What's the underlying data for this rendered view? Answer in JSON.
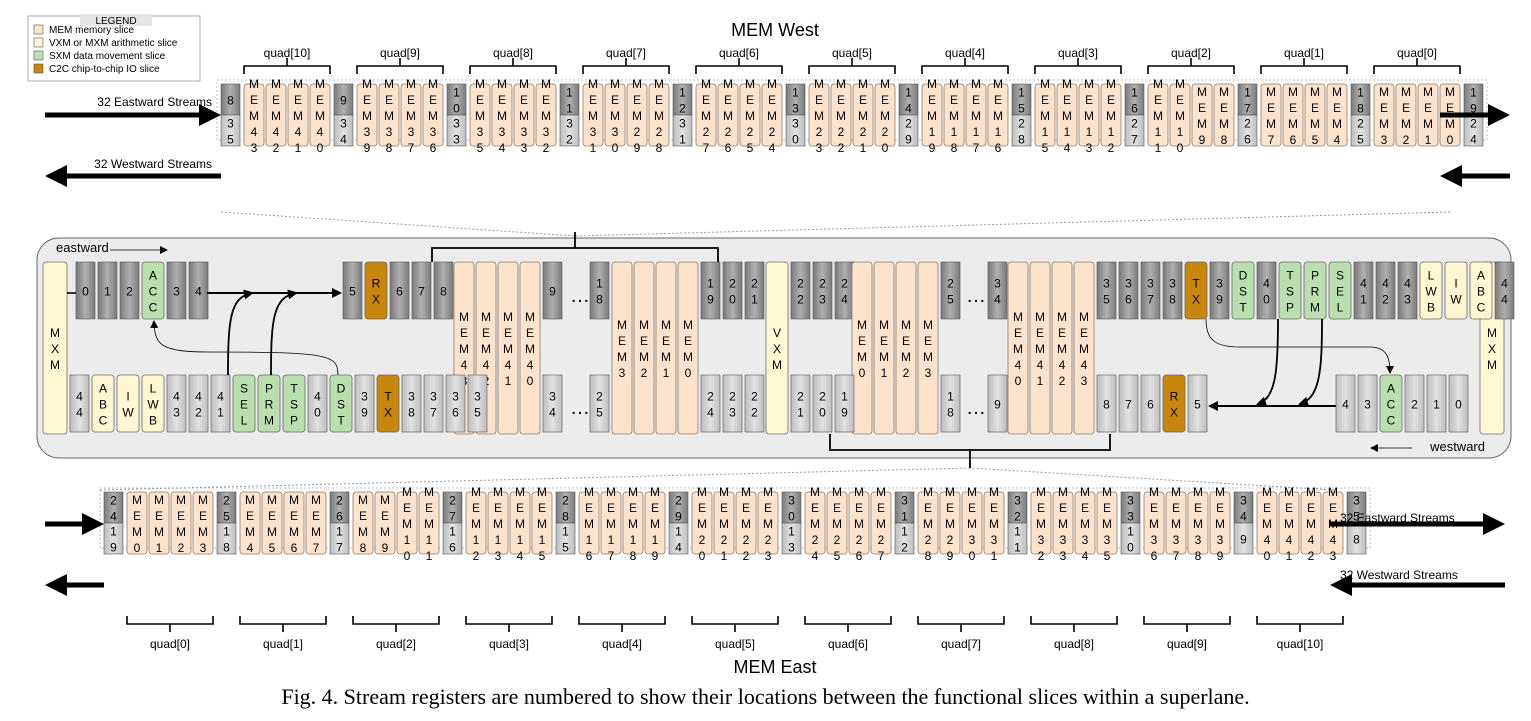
{
  "legend": {
    "title": "LEGEND",
    "items": [
      {
        "label": "MEM memory slice",
        "color": "#fde3cc"
      },
      {
        "label": "VXM or MXM arithmetic slice",
        "color": "#fff6d2"
      },
      {
        "label": "SXM data movement slice",
        "color": "#b9dfae"
      },
      {
        "label": "C2C chip-to-chip IO slice",
        "color": "#c8860d"
      }
    ]
  },
  "colors": {
    "mem": "#fde3cc",
    "arith": "#fff6d2",
    "sxm": "#b9dfae",
    "c2c": "#c8860d",
    "reg_dark": "#9a9a9a",
    "reg_light": "#cfcfcf"
  },
  "top": {
    "title": "MEM West",
    "eastward_label": "32 Eastward Streams",
    "westward_label": "32 Westward Streams",
    "quads": [
      "quad[10]",
      "quad[9]",
      "quad[8]",
      "quad[7]",
      "quad[6]",
      "quad[5]",
      "quad[4]",
      "quad[3]",
      "quad[2]",
      "quad[1]",
      "quad[0]"
    ],
    "regs_top": [
      "8",
      "9",
      "10",
      "11",
      "12",
      "13",
      "14",
      "15",
      "16",
      "17",
      "18",
      "19"
    ],
    "regs_bottom": [
      "35",
      "34",
      "33",
      "32",
      "31",
      "30",
      "29",
      "28",
      "27",
      "26",
      "25",
      "24"
    ],
    "mems": [
      [
        "MEM43",
        "MEM42",
        "MEM41",
        "MEM40"
      ],
      [
        "MEM39",
        "MEM38",
        "MEM37",
        "MEM36"
      ],
      [
        "MEM35",
        "MEM34",
        "MEM33",
        "MEM32"
      ],
      [
        "MEM31",
        "MEM30",
        "MEM29",
        "MEM28"
      ],
      [
        "MEM27",
        "MEM26",
        "MEM25",
        "MEM24"
      ],
      [
        "MEM23",
        "MEM22",
        "MEM21",
        "MEM20"
      ],
      [
        "MEM19",
        "MEM18",
        "MEM17",
        "MEM16"
      ],
      [
        "MEM15",
        "MEM14",
        "MEM13",
        "MEM12"
      ],
      [
        "MEM11",
        "MEM10",
        "MEM9",
        "MEM8"
      ],
      [
        "MEM7",
        "MEM6",
        "MEM5",
        "MEM4"
      ],
      [
        "MEM3",
        "MEM2",
        "MEM1",
        "MEM0"
      ]
    ]
  },
  "bottom": {
    "title": "MEM East",
    "eastward_label": "32 Eastward Streams",
    "westward_label": "32 Westward Streams",
    "quads": [
      "quad[0]",
      "quad[1]",
      "quad[2]",
      "quad[3]",
      "quad[4]",
      "quad[5]",
      "quad[6]",
      "quad[7]",
      "quad[8]",
      "quad[9]",
      "quad[10]"
    ],
    "regs_top": [
      "24",
      "25",
      "26",
      "27",
      "28",
      "29",
      "30",
      "31",
      "32",
      "33",
      "34",
      "35"
    ],
    "regs_bottom": [
      "19",
      "18",
      "17",
      "16",
      "15",
      "14",
      "13",
      "12",
      "11",
      "10",
      "9",
      "8"
    ],
    "mems": [
      [
        "MEM0",
        "MEM1",
        "MEM2",
        "MEM3"
      ],
      [
        "MEM4",
        "MEM5",
        "MEM6",
        "MEM7"
      ],
      [
        "MEM8",
        "MEM9",
        "MEM10",
        "MEM11"
      ],
      [
        "MEM12",
        "MEM13",
        "MEM14",
        "MEM15"
      ],
      [
        "MEM16",
        "MEM17",
        "MEM18",
        "MEM19"
      ],
      [
        "MEM20",
        "MEM21",
        "MEM22",
        "MEM23"
      ],
      [
        "MEM24",
        "MEM25",
        "MEM26",
        "MEM27"
      ],
      [
        "MEM28",
        "MEM29",
        "MEM30",
        "MEM31"
      ],
      [
        "MEM32",
        "MEM33",
        "MEM34",
        "MEM35"
      ],
      [
        "MEM36",
        "MEM37",
        "MEM38",
        "MEM39"
      ],
      [
        "MEM40",
        "MEM41",
        "MEM42",
        "MEM43"
      ]
    ]
  },
  "middle": {
    "eastward_label": "eastward",
    "westward_label": "westward",
    "left_mxm": "MXM",
    "right_mxm": "MXM",
    "vxm": "VXM",
    "ellipsis": "…",
    "left_top_regs": [
      "0",
      "1",
      "2"
    ],
    "acc": "ACC",
    "left_top_regs2": [
      "3",
      "4"
    ],
    "rx_left": "RX",
    "left_rx_regs_before": [
      "5"
    ],
    "left_rx_regs_after": [
      "6",
      "7",
      "8"
    ],
    "west_mem_group": [
      "MEM43",
      "MEM42",
      "MEM41",
      "MEM40"
    ],
    "west_mem_group2": [
      "MEM3",
      "MEM2",
      "MEM1",
      "MEM0"
    ],
    "east_mem_group": [
      "MEM0",
      "MEM1",
      "MEM2",
      "MEM3"
    ],
    "east_mem_group2": [
      "MEM40",
      "MEM41",
      "MEM42",
      "MEM43"
    ],
    "top_regs_a": [
      "9"
    ],
    "top_regs_b": [
      "18"
    ],
    "top_regs_c": [
      "19",
      "20",
      "21"
    ],
    "top_regs_d": [
      "22",
      "23",
      "24"
    ],
    "top_regs_e": [
      "25"
    ],
    "top_regs_f": [
      "34"
    ],
    "top_regs_g": [
      "35",
      "36",
      "37",
      "38"
    ],
    "tx_right": "TX",
    "top_regs_h": [
      "39"
    ],
    "dst": "DST",
    "top_regs_i": [
      "40"
    ],
    "tsp": "TSP",
    "prm": "PRM",
    "sel": "SEL",
    "top_regs_j": [
      "41",
      "42",
      "43"
    ],
    "lwb": "LWB",
    "iw": "IW",
    "abc": "ABC",
    "top_regs_k": [
      "44"
    ],
    "bot_left_regs": [
      "44"
    ],
    "bot_abc": "ABC",
    "bot_iw": "IW",
    "bot_lwb": "LWB",
    "bot_regs_a": [
      "43",
      "42",
      "41"
    ],
    "bot_sel": "SEL",
    "bot_prm": "PRM",
    "bot_tsp": "TSP",
    "bot_regs_b": [
      "40"
    ],
    "bot_dst": "DST",
    "bot_regs_c": [
      "39"
    ],
    "tx_left": "TX",
    "bot_regs_d": [
      "38",
      "37",
      "36",
      "35"
    ],
    "bot_regs_e": [
      "34"
    ],
    "bot_regs_f": [
      "25"
    ],
    "bot_regs_g": [
      "24",
      "23",
      "22"
    ],
    "bot_regs_h": [
      "21",
      "20",
      "19"
    ],
    "bot_regs_i": [
      "18"
    ],
    "bot_regs_j": [
      "9"
    ],
    "bot_regs_k": [
      "8",
      "7",
      "6"
    ],
    "rx_right": "RX",
    "bot_regs_l": [
      "5"
    ],
    "right_bot_regs": [
      "4",
      "3"
    ],
    "acc_right": "ACC",
    "right_bot_regs2": [
      "2",
      "1",
      "0"
    ]
  },
  "caption": "Fig. 4.  Stream registers are numbered to show their locations between the functional slices within a superlane."
}
